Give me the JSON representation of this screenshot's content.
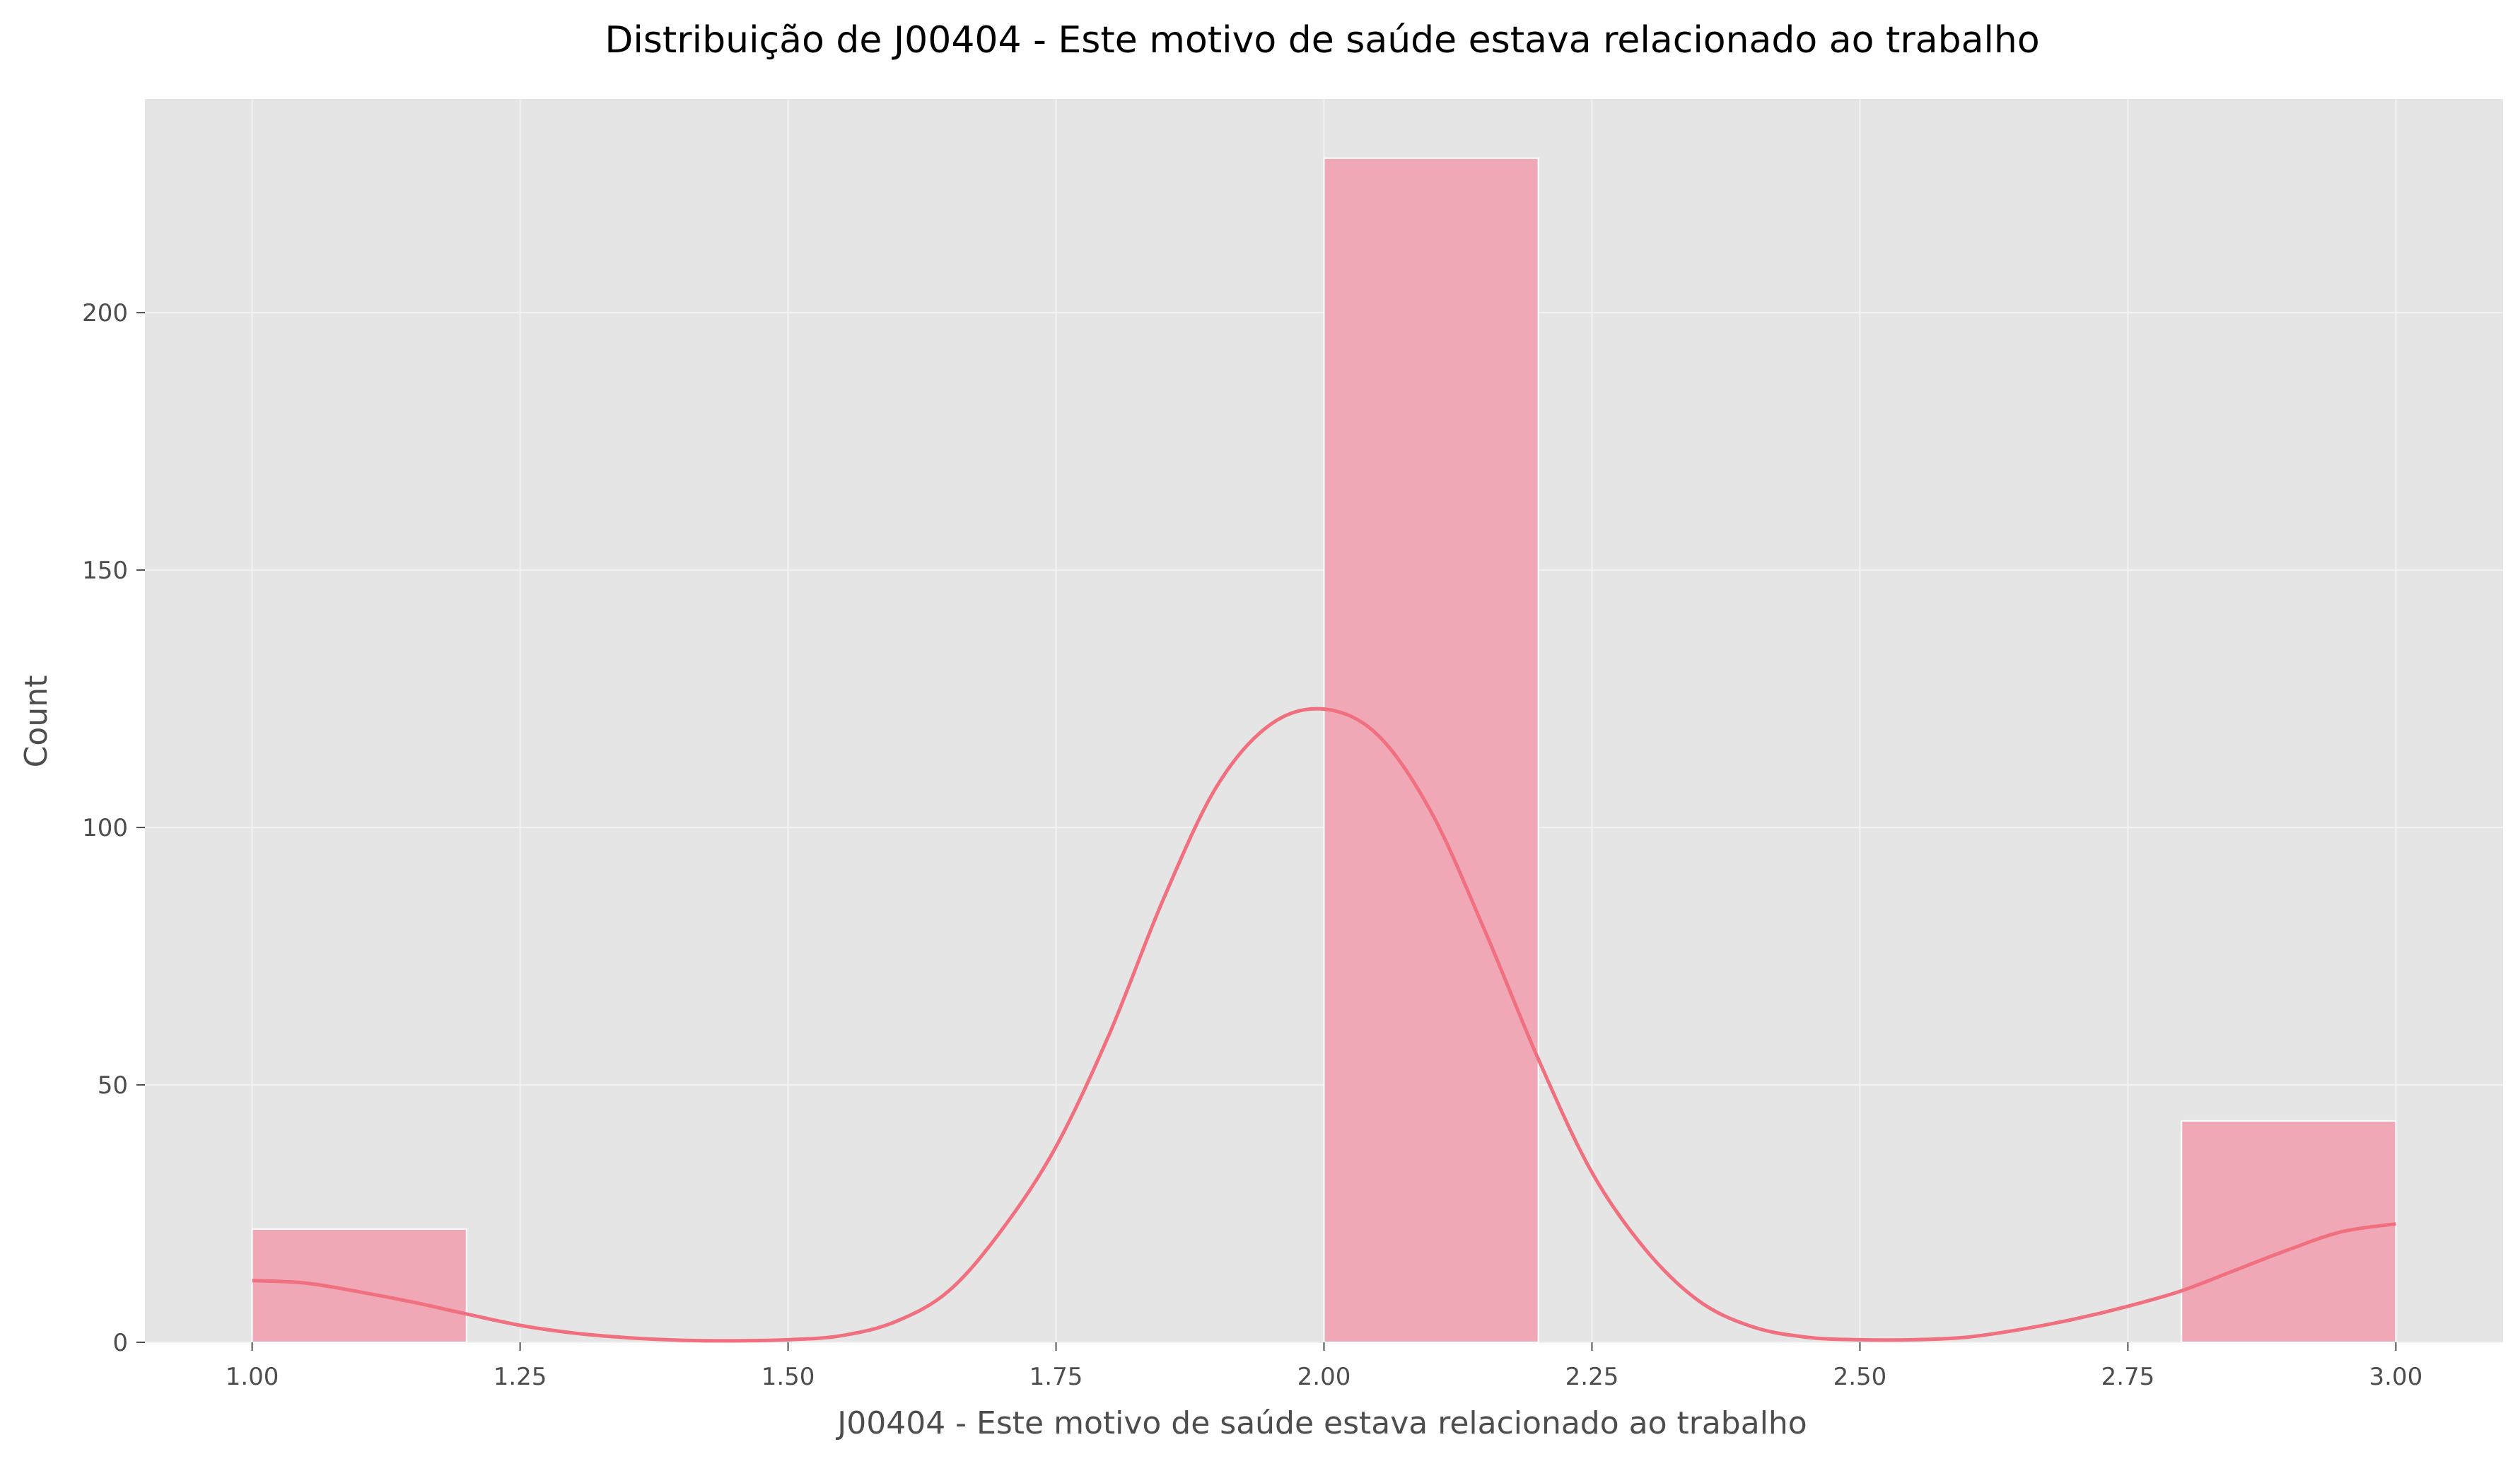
{
  "chart_data": {
    "type": "bar",
    "title": "Distribuição de J00404 - Este motivo de saúde estava relacionado ao trabalho",
    "xlabel": "J00404 - Este motivo de saúde estava relacionado ao trabalho",
    "ylabel": "Count",
    "xlim": [
      0.9,
      3.1
    ],
    "ylim": [
      0,
      241.5
    ],
    "x_ticks": [
      1.0,
      1.25,
      1.5,
      1.75,
      2.0,
      2.25,
      2.5,
      2.75,
      3.0
    ],
    "x_tick_labels": [
      "1.00",
      "1.25",
      "1.50",
      "1.75",
      "2.00",
      "2.25",
      "2.50",
      "2.75",
      "3.00"
    ],
    "y_ticks": [
      0,
      50,
      100,
      150,
      200
    ],
    "y_tick_labels": [
      "0",
      "50",
      "100",
      "150",
      "200"
    ],
    "grid": true,
    "bars": [
      {
        "x0": 1.0,
        "x1": 1.2,
        "count": 22
      },
      {
        "x0": 2.0,
        "x1": 2.2,
        "count": 230
      },
      {
        "x0": 2.8,
        "x1": 3.0,
        "count": 43
      }
    ],
    "kde": {
      "x": [
        1.0,
        1.05,
        1.1,
        1.15,
        1.2,
        1.25,
        1.3,
        1.35,
        1.4,
        1.45,
        1.5,
        1.55,
        1.6,
        1.65,
        1.7,
        1.75,
        1.8,
        1.85,
        1.9,
        1.95,
        2.0,
        2.05,
        2.1,
        2.15,
        2.2,
        2.25,
        2.3,
        2.35,
        2.4,
        2.45,
        2.5,
        2.55,
        2.6,
        2.65,
        2.7,
        2.75,
        2.8,
        2.85,
        2.9,
        2.95,
        3.0
      ],
      "y": [
        12,
        11.5,
        9.8,
        7.8,
        5.5,
        3.3,
        1.8,
        0.9,
        0.4,
        0.3,
        0.5,
        1.3,
        4,
        10,
        22,
        38,
        60,
        86,
        108,
        120,
        123,
        118,
        103,
        80,
        55,
        33,
        18,
        8,
        3,
        1,
        0.5,
        0.5,
        1,
        2.5,
        4.5,
        7,
        10,
        14,
        18,
        21.5,
        23
      ]
    },
    "colors": {
      "background": "#e5e5e5",
      "grid": "#f2f2f2",
      "bar_fill": "#f0a8b6",
      "bar_edge": "#ffffff",
      "kde_line": "#f0707f",
      "text": "#4d4d4d"
    }
  }
}
